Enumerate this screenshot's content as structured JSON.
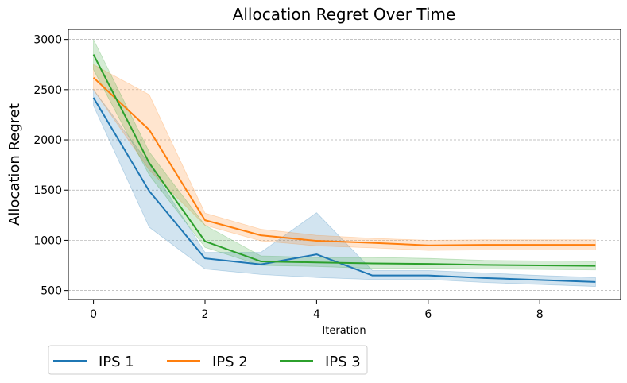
{
  "chart_data": {
    "type": "line",
    "title": "Allocation Regret Over Time",
    "xlabel": "Iteration",
    "ylabel": "Allocation Regret",
    "x": [
      0,
      1,
      2,
      3,
      4,
      5,
      6,
      7,
      8,
      9
    ],
    "xlim": [
      -0.45,
      9.45
    ],
    "ylim": [
      410,
      3100
    ],
    "xticks": [
      0,
      2,
      4,
      6,
      8
    ],
    "yticks": [
      500,
      1000,
      1500,
      2000,
      2500,
      3000
    ],
    "grid": "horizontal dashed",
    "legend_position": "below-left",
    "series": [
      {
        "name": "IPS 1",
        "color": "#1f77b4",
        "values": [
          2420,
          1490,
          820,
          760,
          860,
          650,
          650,
          625,
          605,
          585
        ],
        "lower": [
          2340,
          1130,
          715,
          660,
          630,
          610,
          610,
          580,
          560,
          540
        ],
        "upper": [
          2500,
          1760,
          880,
          880,
          1275,
          700,
          700,
          675,
          650,
          630
        ]
      },
      {
        "name": "IPS 2",
        "color": "#ff7f0e",
        "values": [
          2620,
          2100,
          1200,
          1050,
          995,
          975,
          950,
          955,
          955,
          955
        ],
        "lower": [
          2500,
          1700,
          1150,
          995,
          945,
          925,
          900,
          905,
          905,
          905
        ],
        "upper": [
          2750,
          2450,
          1270,
          1110,
          1050,
          1020,
          1000,
          1005,
          1005,
          1005
        ]
      },
      {
        "name": "IPS 3",
        "color": "#2ca02c",
        "values": [
          2850,
          1770,
          990,
          790,
          780,
          770,
          765,
          755,
          750,
          745
        ],
        "lower": [
          2700,
          1650,
          930,
          750,
          740,
          720,
          720,
          715,
          710,
          705
        ],
        "upper": [
          3000,
          1880,
          1150,
          845,
          830,
          830,
          820,
          800,
          795,
          790
        ]
      }
    ]
  }
}
